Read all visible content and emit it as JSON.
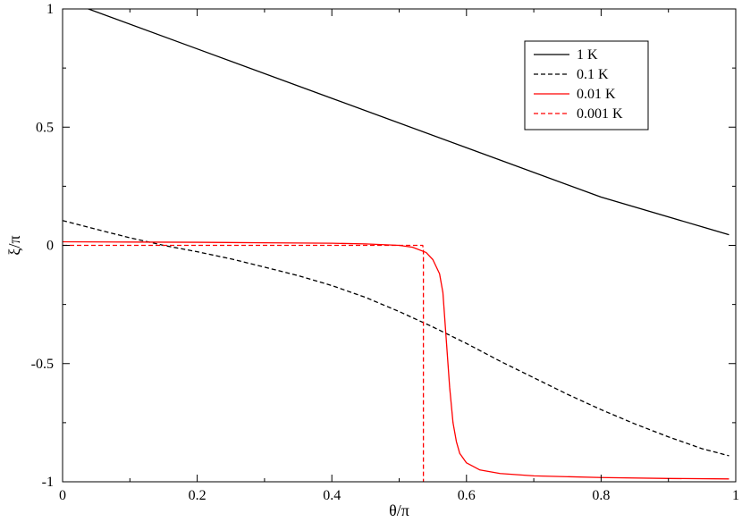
{
  "chart_data": {
    "type": "line",
    "xlabel": "θ/π",
    "ylabel": "ξ/π",
    "xlim": [
      0,
      1
    ],
    "ylim": [
      -1,
      1
    ],
    "xticks": [
      0,
      0.2,
      0.4,
      0.6,
      0.8,
      1
    ],
    "yticks": [
      -1,
      -0.5,
      0,
      0.5,
      1
    ],
    "xtick_labels": [
      "0",
      "0.2",
      "0.4",
      "0.6",
      "0.8",
      "1"
    ],
    "ytick_labels": [
      "-1",
      "-0.5",
      "0",
      "0.5",
      "1"
    ],
    "grid": false,
    "legend_position": "top-right",
    "series": [
      {
        "name": "1 K",
        "color": "#000000",
        "dash": "solid",
        "x": [
          0,
          0.2,
          0.4,
          0.6,
          0.8,
          0.99
        ],
        "y": [
          1.04,
          0.831,
          0.622,
          0.413,
          0.204,
          0.045
        ]
      },
      {
        "name": "0.1 K",
        "color": "#000000",
        "dash": "dashed",
        "x": [
          0,
          0.05,
          0.1,
          0.15,
          0.2,
          0.25,
          0.3,
          0.35,
          0.4,
          0.45,
          0.5,
          0.55,
          0.6,
          0.65,
          0.7,
          0.75,
          0.8,
          0.85,
          0.9,
          0.95,
          0.99
        ],
        "y": [
          0.105,
          0.068,
          0.032,
          0.0,
          -0.027,
          -0.057,
          -0.092,
          -0.128,
          -0.17,
          -0.22,
          -0.28,
          -0.345,
          -0.415,
          -0.49,
          -0.56,
          -0.63,
          -0.695,
          -0.755,
          -0.81,
          -0.86,
          -0.89
        ]
      },
      {
        "name": "0.01 K",
        "color": "#ff0000",
        "dash": "solid",
        "x": [
          0,
          0.1,
          0.2,
          0.3,
          0.4,
          0.45,
          0.5,
          0.52,
          0.54,
          0.55,
          0.56,
          0.565,
          0.57,
          0.575,
          0.58,
          0.585,
          0.59,
          0.6,
          0.62,
          0.65,
          0.7,
          0.8,
          0.9,
          0.99
        ],
        "y": [
          0.015,
          0.014,
          0.013,
          0.011,
          0.009,
          0.006,
          0.0,
          -0.008,
          -0.03,
          -0.06,
          -0.12,
          -0.2,
          -0.4,
          -0.6,
          -0.75,
          -0.83,
          -0.88,
          -0.92,
          -0.95,
          -0.965,
          -0.975,
          -0.982,
          -0.986,
          -0.988
        ]
      },
      {
        "name": "0.001 K",
        "color": "#ff0000",
        "dash": "dashed",
        "x": [
          0,
          0.535,
          0.536,
          0.536
        ],
        "y": [
          0.0,
          0.0,
          -0.02,
          -1.0
        ]
      }
    ]
  }
}
